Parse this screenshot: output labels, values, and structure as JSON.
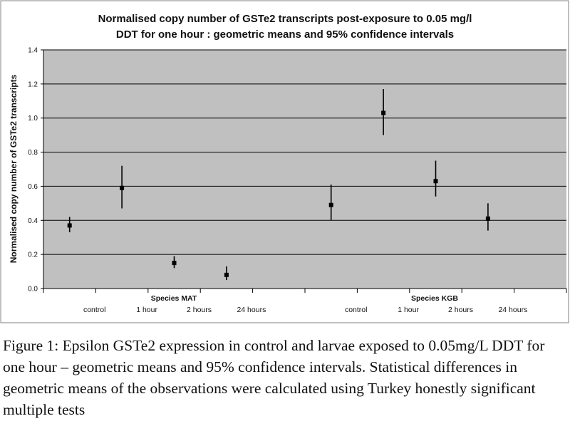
{
  "chart_data": {
    "type": "scatter",
    "title": "Normalised copy number of GSTe2 transcripts post-exposure to 0.05 mg/l",
    "title_line2": "DDT for one hour  :  geometric means and 95% confidence intervals",
    "ylabel": "Normalised copy number of GSTe2 transcripts",
    "ylim": [
      0,
      1.4
    ],
    "yticks": [
      "0.0",
      "0.2",
      "0.4",
      "0.6",
      "0.8",
      "1.0",
      "1.2",
      "1.4"
    ],
    "ytick_values": [
      0,
      0.2,
      0.4,
      0.6,
      0.8,
      1.0,
      1.2,
      1.4
    ],
    "grid": true,
    "group_labels": [
      "Species MAT",
      "Species KGB"
    ],
    "categories": [
      "control",
      "1 hour",
      "2 hours",
      "24 hours",
      "control",
      "1 hour",
      "2 hours",
      "24 hours"
    ],
    "series": [
      {
        "values": [
          0.37,
          0.59,
          0.15,
          0.08,
          0.49,
          1.03,
          0.63,
          0.41
        ],
        "ci_low": [
          0.33,
          0.47,
          0.12,
          0.05,
          0.4,
          0.9,
          0.54,
          0.34
        ],
        "ci_high": [
          0.42,
          0.72,
          0.19,
          0.13,
          0.61,
          1.17,
          0.75,
          0.5
        ]
      }
    ],
    "colors": {
      "plot_bg": "#c0c0c0",
      "frame": "#808080",
      "gridline": "#000000",
      "marker": "#000000"
    }
  },
  "caption": "Figure 1: Epsilon GSTe2 expression in control and larvae exposed to 0.05mg/L DDT for one hour – geometric means and 95% confidence intervals. Statistical differences in geometric means of the observations were calculated using Turkey honestly significant multiple tests"
}
